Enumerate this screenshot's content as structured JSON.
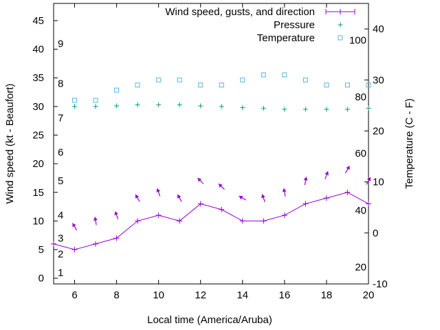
{
  "chart_data": {
    "type": "line",
    "title": "",
    "xlabel": "Local time (America/Aruba)",
    "ylabel": "Wind speed (kt - Beaufort)",
    "y2label": "Temperature (C - F)",
    "xlim": [
      5,
      20
    ],
    "ylim": [
      -1,
      48
    ],
    "y2lim": [
      -10,
      45
    ],
    "x_ticks": [
      6,
      8,
      10,
      12,
      14,
      16,
      18,
      20
    ],
    "y_ticks": [
      0,
      5,
      10,
      15,
      20,
      25,
      30,
      35,
      40,
      45
    ],
    "y2_ticks": [
      -10,
      0,
      10,
      20,
      30,
      40
    ],
    "beaufort_labels": [
      {
        "label": "1",
        "y": 1
      },
      {
        "label": "2",
        "y": 4.2
      },
      {
        "label": "3",
        "y": 7
      },
      {
        "label": "4",
        "y": 11
      },
      {
        "label": "5",
        "y": 17
      },
      {
        "label": "6",
        "y": 22
      },
      {
        "label": "7",
        "y": 28
      },
      {
        "label": "8",
        "y": 34
      },
      {
        "label": "9",
        "y": 41
      }
    ],
    "fahrenheit_labels": [
      {
        "label": "20",
        "y2": -6.7
      },
      {
        "label": "40",
        "y2": 4.4
      },
      {
        "label": "60",
        "y2": 15.6
      },
      {
        "label": "80",
        "y2": 26.7
      },
      {
        "label": "100",
        "y2": 37.8
      }
    ],
    "legend_position": "top-right",
    "series": [
      {
        "name": "Wind speed, gusts, and direction",
        "kind": "line",
        "color": "#9400d3",
        "x": [
          5,
          6,
          7,
          8,
          9,
          10,
          11,
          12,
          13,
          14,
          15,
          16,
          17,
          18,
          19,
          20
        ],
        "y": [
          6,
          5,
          6,
          7,
          10,
          11,
          10,
          13,
          12,
          10,
          10,
          11,
          13,
          14,
          15,
          13
        ]
      },
      {
        "name": "Pressure",
        "kind": "points",
        "marker": "plus",
        "color": "#009e73",
        "x": [
          6,
          7,
          8,
          9,
          10,
          11,
          12,
          13,
          14,
          15,
          16,
          17,
          18,
          19,
          20
        ],
        "y": [
          30.0,
          30.0,
          30.1,
          30.3,
          30.3,
          30.3,
          30.1,
          30.0,
          29.8,
          29.7,
          29.5,
          29.5,
          29.5,
          29.5,
          29.7
        ]
      },
      {
        "name": "Temperature",
        "kind": "points",
        "marker": "square",
        "color": "#56b4e9",
        "axis": "y2",
        "x": [
          6,
          7,
          8,
          9,
          10,
          11,
          12,
          13,
          14,
          15,
          16,
          17,
          18,
          19,
          20
        ],
        "y": [
          26,
          26,
          28,
          29,
          30,
          30,
          29,
          29,
          30,
          31,
          31,
          30,
          29,
          29,
          29
        ]
      }
    ],
    "wind_arrows": {
      "color": "#9400d3",
      "x": [
        6,
        7,
        8,
        9,
        10,
        11,
        12,
        13,
        14,
        15,
        16,
        17,
        18,
        19,
        20
      ],
      "y": [
        9,
        10,
        11,
        14,
        15,
        14,
        17,
        16,
        14,
        14,
        15,
        17,
        18,
        19,
        17
      ],
      "direction_deg": [
        120,
        100,
        110,
        120,
        110,
        120,
        135,
        135,
        150,
        110,
        100,
        80,
        70,
        60,
        60
      ]
    }
  }
}
